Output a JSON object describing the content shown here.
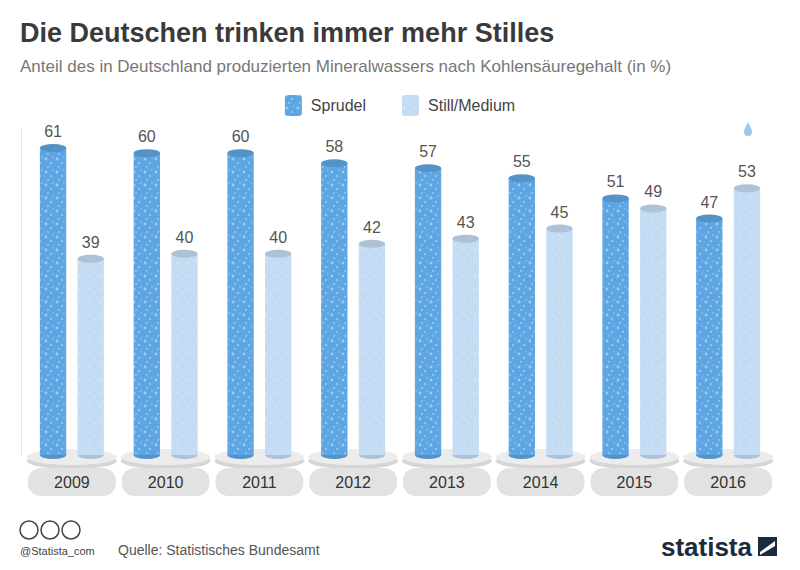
{
  "chart_data": {
    "type": "bar",
    "title": "Die Deutschen trinken immer mehr Stilles",
    "subtitle": "Anteil des in Deutschland produzierten Mineralwassers nach Kohlensäuregehalt (in %)",
    "categories": [
      "2009",
      "2010",
      "2011",
      "2012",
      "2013",
      "2014",
      "2015",
      "2016"
    ],
    "series": [
      {
        "name": "Sprudel",
        "color": "#5ea6e3",
        "values": [
          61,
          60,
          60,
          58,
          57,
          55,
          51,
          47
        ]
      },
      {
        "name": "Still/Medium",
        "color": "#c4dcf3",
        "values": [
          39,
          40,
          40,
          42,
          43,
          45,
          49,
          53
        ]
      }
    ],
    "ylim": [
      0,
      65
    ],
    "yticks": [],
    "tick_labels": "x",
    "data_labels": true,
    "grid": false,
    "legend": "top",
    "source": "Quelle: Statistisches Bundesamt",
    "annotations": [
      "@Statista_com",
      "statista"
    ]
  }
}
